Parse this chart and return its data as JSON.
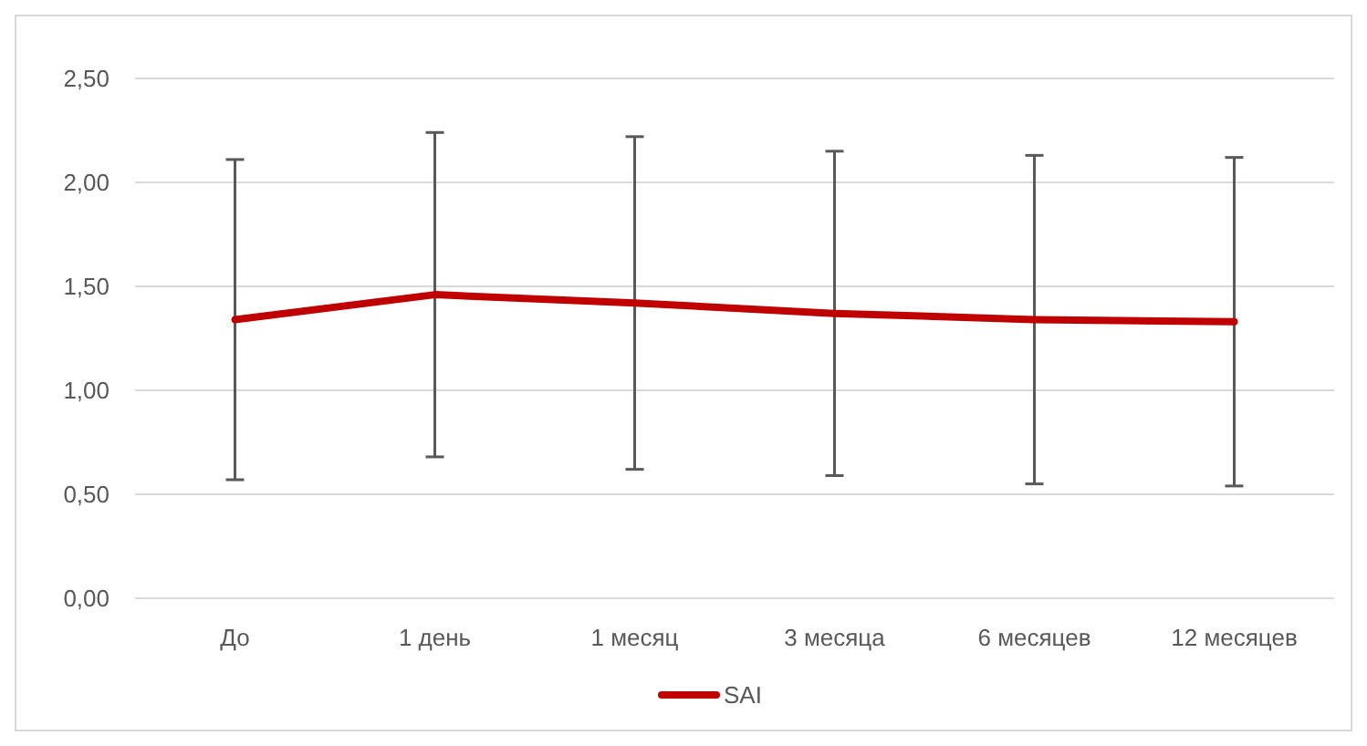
{
  "chart_data": {
    "type": "line",
    "categories": [
      "До",
      "1 день",
      "1 месяц",
      "3 месяца",
      "6 месяцев",
      "12 месяцев"
    ],
    "series": [
      {
        "name": "SAI",
        "color": "#c00000",
        "values": [
          1.34,
          1.46,
          1.42,
          1.37,
          1.34,
          1.33
        ],
        "errors": [
          0.77,
          0.78,
          0.8,
          0.78,
          0.79,
          0.79
        ]
      }
    ],
    "ylim": [
      0,
      2.5
    ],
    "yticks": [
      {
        "value": 0,
        "label": "0,00"
      },
      {
        "value": 0.5,
        "label": "0,50"
      },
      {
        "value": 1,
        "label": "1,00"
      },
      {
        "value": 1.5,
        "label": "1,50"
      },
      {
        "value": 2,
        "label": "2,00"
      },
      {
        "value": 2.5,
        "label": "2,50"
      }
    ],
    "grid": "y",
    "legend": "bottom",
    "marker": "none",
    "line_style": "solid"
  }
}
